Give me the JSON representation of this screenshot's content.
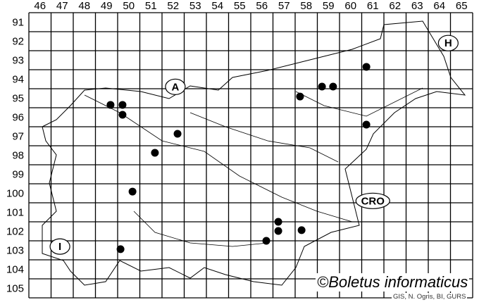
{
  "grid": {
    "columns": [
      "46",
      "47",
      "48",
      "49",
      "50",
      "51",
      "52",
      "53",
      "54",
      "55",
      "56",
      "57",
      "58",
      "59",
      "60",
      "61",
      "62",
      "63",
      "64",
      "65"
    ],
    "rows": [
      "91",
      "92",
      "93",
      "94",
      "95",
      "96",
      "97",
      "98",
      "99",
      "100",
      "101",
      "102",
      "103",
      "104",
      "105"
    ]
  },
  "country_labels": [
    {
      "text": "A",
      "col": 52.6,
      "row": 94.9
    },
    {
      "text": "H",
      "col": 64.9,
      "row": 92.6
    },
    {
      "text": "CRO",
      "col": 61.5,
      "row": 100.9
    },
    {
      "text": "I",
      "col": 47.4,
      "row": 103.3
    }
  ],
  "occurrences": [
    {
      "col": 49.68,
      "row": 95.85
    },
    {
      "col": 50.22,
      "row": 95.85
    },
    {
      "col": 50.22,
      "row": 96.37
    },
    {
      "col": 52.7,
      "row": 97.37
    },
    {
      "col": 51.68,
      "row": 98.37
    },
    {
      "col": 50.67,
      "row": 100.41
    },
    {
      "col": 50.13,
      "row": 103.44
    },
    {
      "col": 58.22,
      "row": 95.41
    },
    {
      "col": 59.21,
      "row": 94.89
    },
    {
      "col": 59.71,
      "row": 94.89
    },
    {
      "col": 61.21,
      "row": 93.85
    },
    {
      "col": 61.21,
      "row": 96.89
    },
    {
      "col": 57.24,
      "row": 102.0
    },
    {
      "col": 57.24,
      "row": 102.48
    },
    {
      "col": 58.29,
      "row": 102.44
    },
    {
      "col": 56.7,
      "row": 103.0
    }
  ],
  "colors": {
    "lines": "#000000",
    "dots": "#000000",
    "background": "#ffffff"
  },
  "copyright": "©Boletus informaticus",
  "source": "GIS, N. Ogris, BI, GURS"
}
